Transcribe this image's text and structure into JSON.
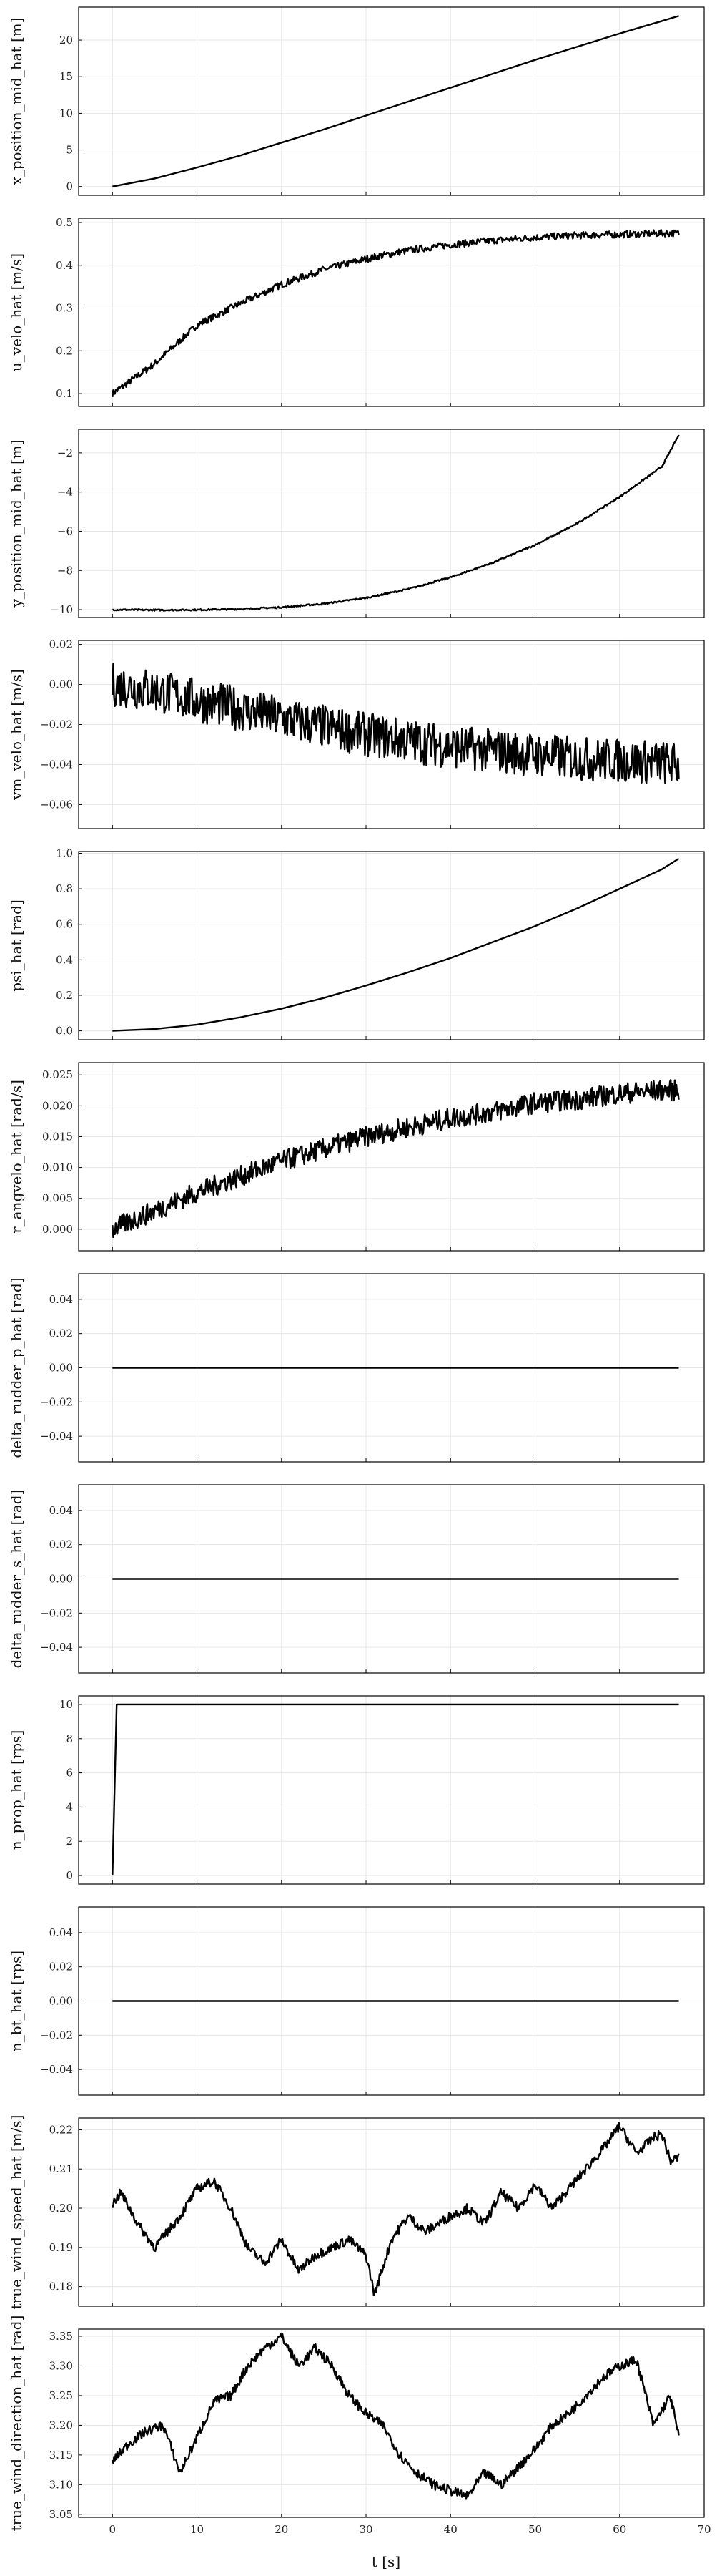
{
  "figure": {
    "xlabel": "t [s]"
  },
  "chart_data": [
    {
      "type": "line",
      "ylabel": "x_position_mid_hat [m]",
      "xlim": [
        -4,
        70
      ],
      "ylim": [
        -1.2,
        24.5
      ],
      "yticks": [
        0,
        5,
        10,
        15,
        20
      ],
      "xticks": [
        0,
        10,
        20,
        30,
        40,
        50,
        60,
        70
      ],
      "series": [
        {
          "x": [
            0,
            5,
            10,
            15,
            20,
            25,
            30,
            35,
            40,
            45,
            50,
            55,
            60,
            65,
            67
          ],
          "y": [
            0,
            1.1,
            2.6,
            4.2,
            6.0,
            7.8,
            9.7,
            11.6,
            13.5,
            15.4,
            17.3,
            19.1,
            20.9,
            22.6,
            23.3
          ],
          "noise": 0
        }
      ]
    },
    {
      "type": "line",
      "ylabel": "u_velo_hat [m/s]",
      "xlim": [
        -4,
        70
      ],
      "ylim": [
        0.07,
        0.51
      ],
      "yticks": [
        0.1,
        0.2,
        0.3,
        0.4,
        0.5
      ],
      "xticks": [
        0,
        10,
        20,
        30,
        40,
        50,
        60,
        70
      ],
      "series": [
        {
          "x": [
            0,
            5,
            10,
            15,
            20,
            25,
            30,
            35,
            40,
            45,
            50,
            55,
            60,
            65,
            67
          ],
          "y": [
            0.1,
            0.17,
            0.26,
            0.31,
            0.355,
            0.39,
            0.415,
            0.435,
            0.448,
            0.458,
            0.465,
            0.47,
            0.472,
            0.475,
            0.475
          ],
          "noise": 0.008
        }
      ]
    },
    {
      "type": "line",
      "ylabel": "y_position_mid_hat [m]",
      "xlim": [
        -4,
        70
      ],
      "ylim": [
        -10.4,
        -0.8
      ],
      "yticks": [
        -10,
        -8,
        -6,
        -4,
        -2
      ],
      "xticks": [
        0,
        10,
        20,
        30,
        40,
        50,
        60,
        70
      ],
      "series": [
        {
          "x": [
            0,
            5,
            10,
            15,
            20,
            25,
            30,
            35,
            40,
            45,
            50,
            55,
            60,
            65,
            67
          ],
          "y": [
            -10,
            -10.02,
            -10.01,
            -9.97,
            -9.88,
            -9.7,
            -9.4,
            -8.95,
            -8.35,
            -7.6,
            -6.7,
            -5.6,
            -4.25,
            -2.7,
            -1.1
          ],
          "noise": 0.04
        }
      ]
    },
    {
      "type": "line",
      "ylabel": "vm_velo_hat [m/s]",
      "xlim": [
        -4,
        70
      ],
      "ylim": [
        -0.072,
        0.022
      ],
      "yticks": [
        -0.06,
        -0.04,
        -0.02,
        0.0,
        0.02
      ],
      "xticks": [
        0,
        10,
        20,
        30,
        40,
        50,
        60,
        70
      ],
      "series": [
        {
          "x": [
            0,
            5,
            10,
            15,
            20,
            25,
            30,
            35,
            40,
            45,
            50,
            55,
            60,
            65,
            67
          ],
          "y": [
            0.0,
            -0.003,
            -0.008,
            -0.012,
            -0.017,
            -0.021,
            -0.025,
            -0.028,
            -0.031,
            -0.033,
            -0.035,
            -0.037,
            -0.038,
            -0.039,
            -0.04
          ],
          "noise": 0.011
        }
      ]
    },
    {
      "type": "line",
      "ylabel": "psi_hat [rad]",
      "xlim": [
        -4,
        70
      ],
      "ylim": [
        -0.05,
        1.01
      ],
      "yticks": [
        0.0,
        0.2,
        0.4,
        0.6,
        0.8,
        1.0
      ],
      "xticks": [
        0,
        10,
        20,
        30,
        40,
        50,
        60,
        70
      ],
      "series": [
        {
          "x": [
            0,
            5,
            10,
            15,
            20,
            25,
            30,
            35,
            40,
            45,
            50,
            55,
            60,
            65,
            67
          ],
          "y": [
            0,
            0.01,
            0.035,
            0.075,
            0.125,
            0.185,
            0.255,
            0.33,
            0.41,
            0.5,
            0.59,
            0.69,
            0.8,
            0.91,
            0.97
          ],
          "noise": 0
        }
      ]
    },
    {
      "type": "line",
      "ylabel": "r_angvelo_hat [rad/s]",
      "xlim": [
        -4,
        70
      ],
      "ylim": [
        -0.0035,
        0.027
      ],
      "yticks": [
        0.0,
        0.005,
        0.01,
        0.015,
        0.02,
        0.025
      ],
      "xticks": [
        0,
        10,
        20,
        30,
        40,
        50,
        60,
        70
      ],
      "series": [
        {
          "x": [
            0,
            5,
            10,
            15,
            20,
            25,
            30,
            35,
            40,
            45,
            50,
            55,
            60,
            65,
            67
          ],
          "y": [
            0.0,
            0.003,
            0.006,
            0.0085,
            0.011,
            0.013,
            0.015,
            0.0165,
            0.018,
            0.019,
            0.0205,
            0.021,
            0.022,
            0.0225,
            0.0225
          ],
          "noise": 0.0017
        }
      ]
    },
    {
      "type": "line",
      "ylabel": "delta_rudder_p_hat [rad]",
      "xlim": [
        -4,
        70
      ],
      "ylim": [
        -0.055,
        0.055
      ],
      "yticks": [
        -0.04,
        -0.02,
        0.0,
        0.02,
        0.04
      ],
      "xticks": [
        0,
        10,
        20,
        30,
        40,
        50,
        60,
        70
      ],
      "series": [
        {
          "x": [
            0,
            67
          ],
          "y": [
            0,
            0
          ],
          "noise": 0
        }
      ]
    },
    {
      "type": "line",
      "ylabel": "delta_rudder_s_hat [rad]",
      "xlim": [
        -4,
        70
      ],
      "ylim": [
        -0.055,
        0.055
      ],
      "yticks": [
        -0.04,
        -0.02,
        0.0,
        0.02,
        0.04
      ],
      "xticks": [
        0,
        10,
        20,
        30,
        40,
        50,
        60,
        70
      ],
      "series": [
        {
          "x": [
            0,
            67
          ],
          "y": [
            0,
            0
          ],
          "noise": 0
        }
      ]
    },
    {
      "type": "line",
      "ylabel": "n_prop_hat [rps]",
      "xlim": [
        -4,
        70
      ],
      "ylim": [
        -0.5,
        10.5
      ],
      "yticks": [
        0,
        2,
        4,
        6,
        8,
        10
      ],
      "xticks": [
        0,
        10,
        20,
        30,
        40,
        50,
        60,
        70
      ],
      "series": [
        {
          "x": [
            0,
            0.5,
            67
          ],
          "y": [
            0,
            10,
            10
          ],
          "noise": 0
        }
      ]
    },
    {
      "type": "line",
      "ylabel": "n_bt_hat [rps]",
      "xlim": [
        -4,
        70
      ],
      "ylim": [
        -0.055,
        0.055
      ],
      "yticks": [
        -0.04,
        -0.02,
        0.0,
        0.02,
        0.04
      ],
      "xticks": [
        0,
        10,
        20,
        30,
        40,
        50,
        60,
        70
      ],
      "series": [
        {
          "x": [
            0,
            67
          ],
          "y": [
            0,
            0
          ],
          "noise": 0
        }
      ]
    },
    {
      "type": "line",
      "ylabel": "true_wind_speed_hat [m/s]",
      "xlim": [
        -4,
        70
      ],
      "ylim": [
        0.175,
        0.223
      ],
      "yticks": [
        0.18,
        0.19,
        0.2,
        0.21,
        0.22
      ],
      "xticks": [
        0,
        10,
        20,
        30,
        40,
        50,
        60,
        70
      ],
      "series": [
        {
          "x": [
            0,
            1,
            3,
            5,
            8,
            10,
            12,
            14,
            16,
            18,
            20,
            22,
            24,
            26,
            28,
            30,
            31,
            33,
            35,
            37,
            40,
            42,
            44,
            46,
            48,
            50,
            52,
            54,
            56,
            58,
            60,
            62,
            64,
            65,
            66,
            67
          ],
          "y": [
            0.201,
            0.204,
            0.196,
            0.19,
            0.198,
            0.205,
            0.207,
            0.2,
            0.19,
            0.186,
            0.192,
            0.184,
            0.188,
            0.19,
            0.192,
            0.188,
            0.178,
            0.192,
            0.198,
            0.194,
            0.198,
            0.2,
            0.196,
            0.204,
            0.2,
            0.206,
            0.2,
            0.205,
            0.21,
            0.215,
            0.221,
            0.214,
            0.218,
            0.219,
            0.212,
            0.213
          ],
          "noise": 0.0012
        }
      ]
    },
    {
      "type": "line",
      "ylabel": "true_wind_direction_hat [rad]",
      "xlim": [
        -4,
        70
      ],
      "ylim": [
        3.045,
        3.362
      ],
      "yticks": [
        3.05,
        3.1,
        3.15,
        3.2,
        3.25,
        3.3,
        3.35
      ],
      "xticks": [
        0,
        10,
        20,
        30,
        40,
        50,
        60,
        70
      ],
      "series": [
        {
          "x": [
            0,
            2,
            4,
            6,
            8,
            10,
            12,
            14,
            16,
            18,
            20,
            22,
            24,
            26,
            28,
            30,
            32,
            34,
            36,
            38,
            40,
            42,
            44,
            46,
            48,
            50,
            52,
            54,
            56,
            58,
            60,
            62,
            64,
            66,
            67
          ],
          "y": [
            3.14,
            3.17,
            3.19,
            3.2,
            3.12,
            3.18,
            3.24,
            3.25,
            3.3,
            3.33,
            3.35,
            3.3,
            3.33,
            3.3,
            3.25,
            3.22,
            3.2,
            3.15,
            3.12,
            3.1,
            3.09,
            3.08,
            3.12,
            3.1,
            3.13,
            3.16,
            3.2,
            3.22,
            3.25,
            3.28,
            3.3,
            3.31,
            3.2,
            3.25,
            3.18
          ],
          "noise": 0.008
        }
      ]
    }
  ]
}
